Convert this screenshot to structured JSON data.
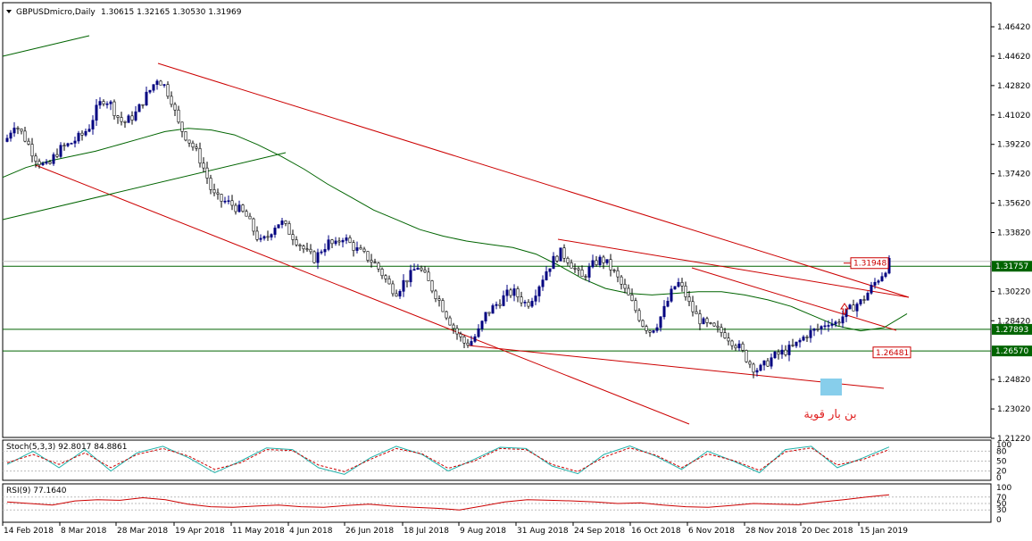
{
  "header": {
    "symbol": "GBPUSDmicro,Daily",
    "ohlc": "1.30615 1.32165 1.30530 1.31969"
  },
  "stoch_label": "Stoch(5,3,3) 92.8017 84.8861",
  "rsi_label": "RSI(9) 77.1640",
  "annotation_text": "بن بار قوية",
  "colors": {
    "bull_candle": "#000080",
    "bear_candle": "#000000",
    "ma": "#006400",
    "trendline_red": "#cc0000",
    "level_green": "#006400",
    "stoch_main": "#20b2aa",
    "stoch_signal": "#cc0000",
    "rsi": "#cc0000",
    "highlight_box": "#87ceeb"
  },
  "chart_data": [
    {
      "type": "candlestick",
      "title": "GBPUSDmicro,Daily",
      "y_ticks": [
        "1.46420",
        "1.44620",
        "1.42820",
        "1.41020",
        "1.39220",
        "1.37420",
        "1.35620",
        "1.33820",
        "1.30220",
        "1.28420",
        "1.24820",
        "1.23020",
        "1.21220"
      ],
      "ylim": [
        1.2122,
        1.4642
      ],
      "x_tick_labels": [
        "14 Feb 2018",
        "8 Mar 2018",
        "28 Mar 2018",
        "19 Apr 2018",
        "11 May 2018",
        "4 Jun 2018",
        "26 Jun 2018",
        "18 Jul 2018",
        "9 Aug 2018",
        "31 Aug 2018",
        "24 Sep 2018",
        "16 Oct 2018",
        "6 Nov 2018",
        "28 Nov 2018",
        "20 Dec 2018",
        "15 Jan 2019"
      ],
      "price_levels": [
        {
          "label": "1.31948",
          "value": 1.31948,
          "color": "#cc0000"
        },
        {
          "label": "1.31757",
          "value": 1.31757,
          "color": "#006400"
        },
        {
          "label": "1.27893",
          "value": 1.27893,
          "color": "#006400"
        },
        {
          "label": "1.26570",
          "value": 1.2657,
          "color": "#006400"
        },
        {
          "label": "1.26481",
          "value": 1.26481,
          "color": "#cc0000"
        }
      ],
      "close_path": [
        1.396,
        1.405,
        1.4,
        1.393,
        1.385,
        1.38,
        1.378,
        1.386,
        1.39,
        1.392,
        1.395,
        1.398,
        1.403,
        1.413,
        1.42,
        1.418,
        1.41,
        1.405,
        1.408,
        1.412,
        1.42,
        1.426,
        1.433,
        1.428,
        1.42,
        1.405,
        1.398,
        1.392,
        1.385,
        1.375,
        1.362,
        1.358,
        1.357,
        1.355,
        1.352,
        1.348,
        1.34,
        1.332,
        1.335,
        1.342,
        1.345,
        1.34,
        1.335,
        1.33,
        1.325,
        1.322,
        1.328,
        1.332,
        1.33,
        1.336,
        1.332,
        1.328,
        1.325,
        1.322,
        1.318,
        1.312,
        1.305,
        1.302,
        1.308,
        1.312,
        1.318,
        1.312,
        1.305,
        1.298,
        1.29,
        1.282,
        1.275,
        1.27,
        1.272,
        1.278,
        1.288,
        1.292,
        1.296,
        1.3,
        1.302,
        1.298,
        1.294,
        1.3,
        1.308,
        1.316,
        1.322,
        1.326,
        1.322,
        1.316,
        1.31,
        1.315,
        1.32,
        1.322,
        1.318,
        1.312,
        1.305,
        1.298,
        1.29,
        1.282,
        1.278,
        1.282,
        1.29,
        1.3,
        1.308,
        1.302,
        1.292,
        1.286,
        1.282,
        1.28,
        1.278,
        1.276,
        1.272,
        1.268,
        1.262,
        1.256,
        1.254,
        1.258,
        1.262,
        1.264,
        1.266,
        1.268,
        1.272,
        1.276,
        1.278,
        1.28,
        1.284,
        1.282,
        1.286,
        1.29,
        1.294,
        1.296,
        1.302,
        1.308,
        1.313,
        1.3197
      ],
      "moving_average": [
        1.372,
        1.378,
        1.382,
        1.385,
        1.388,
        1.392,
        1.396,
        1.4,
        1.402,
        1.401,
        1.398,
        1.392,
        1.385,
        1.377,
        1.368,
        1.36,
        1.352,
        1.346,
        1.34,
        1.336,
        1.333,
        1.331,
        1.329,
        1.325,
        1.318,
        1.31,
        1.304,
        1.301,
        1.3,
        1.301,
        1.302,
        1.302,
        1.3,
        1.297,
        1.293,
        1.287,
        1.281,
        1.278,
        1.28,
        1.2885
      ],
      "stochastic": {
        "main": [
          40,
          80,
          30,
          85,
          20,
          75,
          95,
          60,
          15,
          50,
          90,
          85,
          30,
          10,
          60,
          95,
          70,
          20,
          55,
          92,
          88,
          35,
          12,
          70,
          96,
          65,
          25,
          80,
          50,
          15,
          85,
          95,
          30,
          60,
          92.8
        ],
        "signal": [
          45,
          70,
          40,
          75,
          30,
          70,
          88,
          65,
          25,
          45,
          85,
          82,
          38,
          18,
          55,
          88,
          72,
          28,
          50,
          88,
          85,
          40,
          18,
          62,
          90,
          68,
          30,
          72,
          52,
          22,
          78,
          90,
          38,
          55,
          84.9
        ],
        "levels": [
          80,
          50,
          20
        ]
      },
      "rsi": {
        "values": [
          55,
          50,
          45,
          58,
          62,
          60,
          68,
          62,
          48,
          40,
          38,
          42,
          45,
          40,
          38,
          44,
          48,
          42,
          38,
          35,
          30,
          42,
          55,
          62,
          60,
          58,
          55,
          50,
          52,
          45,
          40,
          38,
          44,
          50,
          48,
          46,
          55,
          62,
          70,
          77.2
        ],
        "levels": [
          70,
          50,
          30
        ]
      }
    }
  ]
}
